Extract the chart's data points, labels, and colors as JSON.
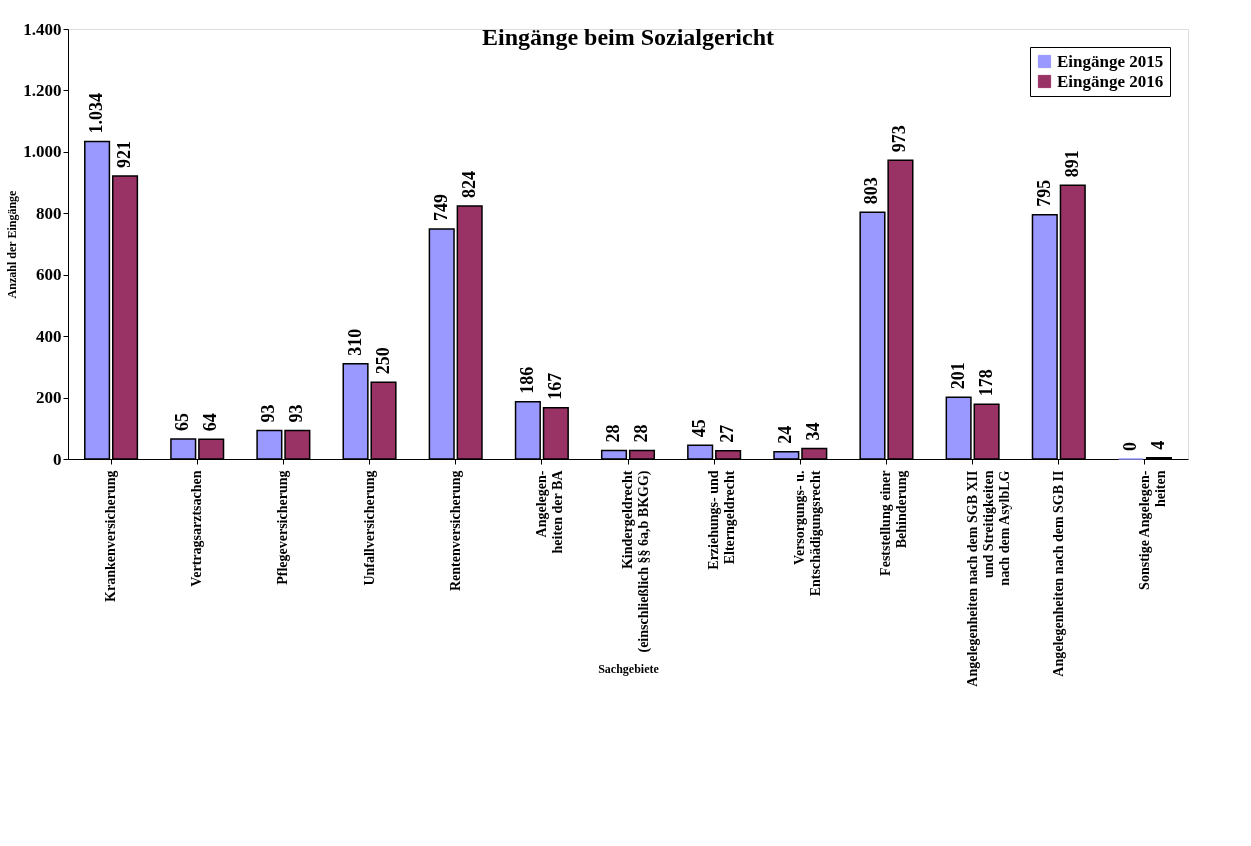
{
  "chart_data": {
    "type": "bar",
    "title": "Eingänge beim Sozialgericht",
    "xlabel": "Sachgebiete",
    "ylabel": "Anzahl der Eingänge",
    "categories": [
      "Krankenversicherung",
      "Vertragsarztsachen",
      "Pflegeversicherung",
      "Unfallversicherung",
      "Rentenversicherung",
      "Angelegen-\nheiten der BA",
      "Kindergeldrecht\n(einschließlich §§ 6a,b BKGG)",
      "Erziehungs- und\nElterngeldrecht",
      "Versorgungs- u.\nEntschädigungsrecht",
      "Feststellung einer\nBehinderung",
      "Angelegenheiten nach dem SGB XII\nund Streitigkeiten\nnach dem AsylbLG",
      "Angelegenheiten nach dem SGB II",
      "Sonstige Angelegen-\nheiten"
    ],
    "series": [
      {
        "name": "Eingänge 2015",
        "color": "#9999ff",
        "values": [
          1034,
          65,
          93,
          310,
          749,
          186,
          28,
          45,
          24,
          803,
          201,
          795,
          0
        ],
        "value_labels": [
          "1.034",
          "65",
          "93",
          "310",
          "749",
          "186",
          "28",
          "45",
          "24",
          "803",
          "201",
          "795",
          "0"
        ]
      },
      {
        "name": "Eingänge 2016",
        "color": "#993366",
        "values": [
          921,
          64,
          93,
          250,
          824,
          167,
          28,
          27,
          34,
          973,
          178,
          891,
          4
        ],
        "value_labels": [
          "921",
          "64",
          "93",
          "250",
          "824",
          "167",
          "28",
          "27",
          "34",
          "973",
          "178",
          "891",
          "4"
        ]
      }
    ],
    "ylim": [
      0,
      1400
    ],
    "yticks": [
      0,
      200,
      400,
      600,
      800,
      {
        "value": 1000,
        "label": "1.000"
      },
      {
        "value": 1200,
        "label": "1.200"
      },
      {
        "value": 1400,
        "label": "1.400"
      }
    ],
    "grid": false,
    "legend": "top right"
  }
}
